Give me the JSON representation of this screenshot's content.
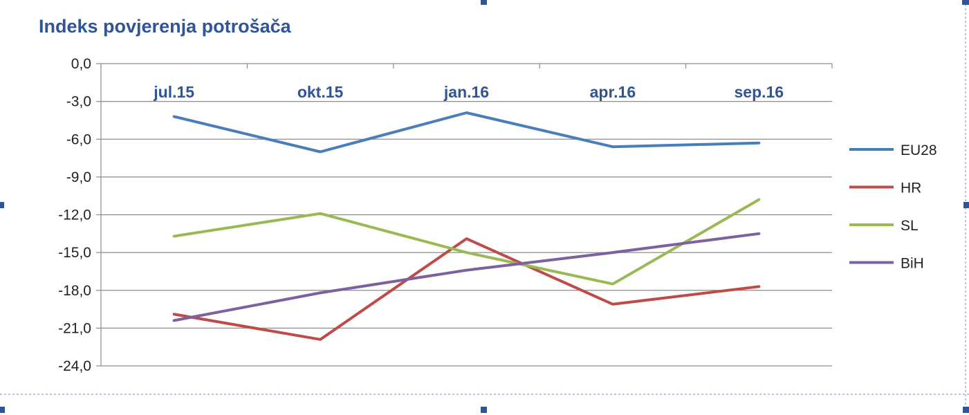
{
  "chart_data": {
    "type": "line",
    "title": "Indeks povjerenja potrošača",
    "xlabel": "",
    "ylabel": "",
    "categories": [
      "jul.15",
      "okt.15",
      "jan.16",
      "apr.16",
      "sep.16"
    ],
    "yticks": [
      "0,0",
      "-3,0",
      "-6,0",
      "-9,0",
      "-12,0",
      "-15,0",
      "-18,0",
      "-21,0",
      "-24,0"
    ],
    "ylim": [
      -24,
      0
    ],
    "grid": true,
    "legend_position": "right",
    "series": [
      {
        "name": "EU28",
        "color": "#4a7ebb",
        "values": [
          -4.2,
          -7.0,
          -3.9,
          -6.6,
          -6.3
        ]
      },
      {
        "name": "HR",
        "color": "#be4b48",
        "values": [
          -19.9,
          -21.9,
          -13.9,
          -19.1,
          -17.7
        ]
      },
      {
        "name": "SL",
        "color": "#98b954",
        "values": [
          -13.7,
          -11.9,
          -15.0,
          -17.5,
          -10.8
        ]
      },
      {
        "name": "BiH",
        "color": "#7d60a0",
        "values": [
          -20.4,
          -18.2,
          -16.4,
          -15.0,
          -13.5
        ]
      }
    ]
  }
}
